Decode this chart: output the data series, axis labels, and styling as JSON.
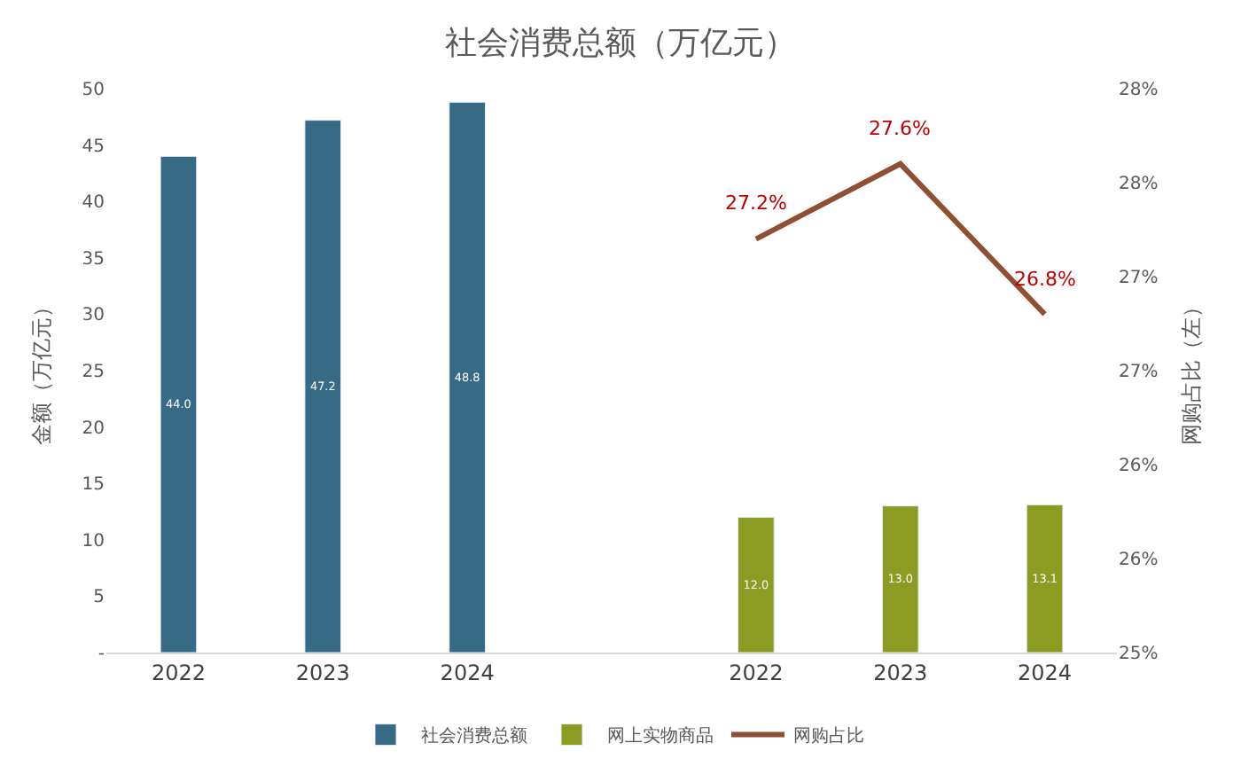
{
  "chart_data": {
    "type": "bar",
    "title": "社会消费总额（万亿元）",
    "ylabel": "金额（万亿元）",
    "y2label": "网购占比（左）",
    "categories": [
      "2022",
      "2023",
      "2024",
      null,
      "2022",
      "2023",
      "2024"
    ],
    "series": [
      {
        "name": "社会消费总额",
        "color": "#376b85",
        "values": [
          44.0,
          47.2,
          48.8,
          null,
          null,
          null,
          null
        ],
        "value_labels": [
          "44.0",
          "47.2",
          "48.8",
          null,
          null,
          null,
          null
        ]
      },
      {
        "name": "网上实物商品",
        "color": "#8c9b22",
        "values": [
          null,
          null,
          null,
          null,
          12.0,
          13.0,
          13.1
        ],
        "value_labels": [
          null,
          null,
          null,
          null,
          "12.0",
          "13.0",
          "13.1"
        ]
      },
      {
        "name": "网购占比",
        "type": "line",
        "axis": "y2",
        "color": "#8f4f33",
        "values": [
          null,
          null,
          null,
          null,
          27.2,
          27.6,
          26.8
        ],
        "value_labels": [
          null,
          null,
          null,
          null,
          "27.2%",
          "27.6%",
          "26.8%"
        ]
      }
    ],
    "ylim": [
      0,
      50
    ],
    "yticks": [
      {
        "value": 0,
        "label": "-"
      },
      5,
      10,
      15,
      20,
      25,
      30,
      35,
      40,
      45,
      50
    ],
    "y2lim": [
      25,
      28
    ],
    "y2ticks": [
      {
        "value": 25,
        "label": "25%"
      },
      {
        "value": 25.5,
        "label": "26%"
      },
      {
        "value": 26,
        "label": "26%"
      },
      {
        "value": 26.5,
        "label": "27%"
      },
      {
        "value": 27,
        "label": "27%"
      },
      {
        "value": 27.5,
        "label": "28%"
      },
      {
        "value": 28,
        "label": "28%"
      }
    ],
    "legend": "bottom",
    "marker": "none",
    "line_style": "solid"
  }
}
